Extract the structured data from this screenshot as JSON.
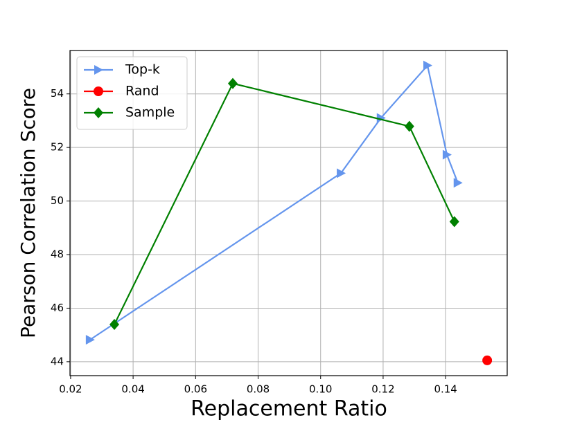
{
  "chart_data": {
    "type": "line",
    "xlabel": "Replacement Ratio",
    "ylabel": "Pearson Correlation Score",
    "xlim": [
      0.0198,
      0.1597
    ],
    "ylim": [
      43.48,
      55.62
    ],
    "xticks": [
      0.02,
      0.04,
      0.06,
      0.08,
      {
        "value": 0.1,
        "label": "0.10"
      },
      0.12,
      0.14
    ],
    "yticks": [
      44,
      46,
      48,
      50,
      52,
      54
    ],
    "grid": true,
    "legend": "upper left",
    "series": [
      {
        "name": "Top-k",
        "color": "#6495ed",
        "marker": "triangle-right",
        "x": [
          0.0262,
          0.1065,
          0.1193,
          0.1342,
          0.1404,
          0.1439
        ],
        "values": [
          44.82,
          51.04,
          53.1,
          55.06,
          51.73,
          50.68
        ]
      },
      {
        "name": "Rand",
        "color": "#ff0000",
        "marker": "circle",
        "x": [
          0.1533
        ],
        "values": [
          44.05
        ]
      },
      {
        "name": "Sample",
        "color": "#008000",
        "marker": "diamond",
        "x": [
          0.034,
          0.0719,
          0.1284,
          0.1428
        ],
        "values": [
          45.39,
          54.39,
          52.79,
          49.23
        ]
      }
    ]
  }
}
